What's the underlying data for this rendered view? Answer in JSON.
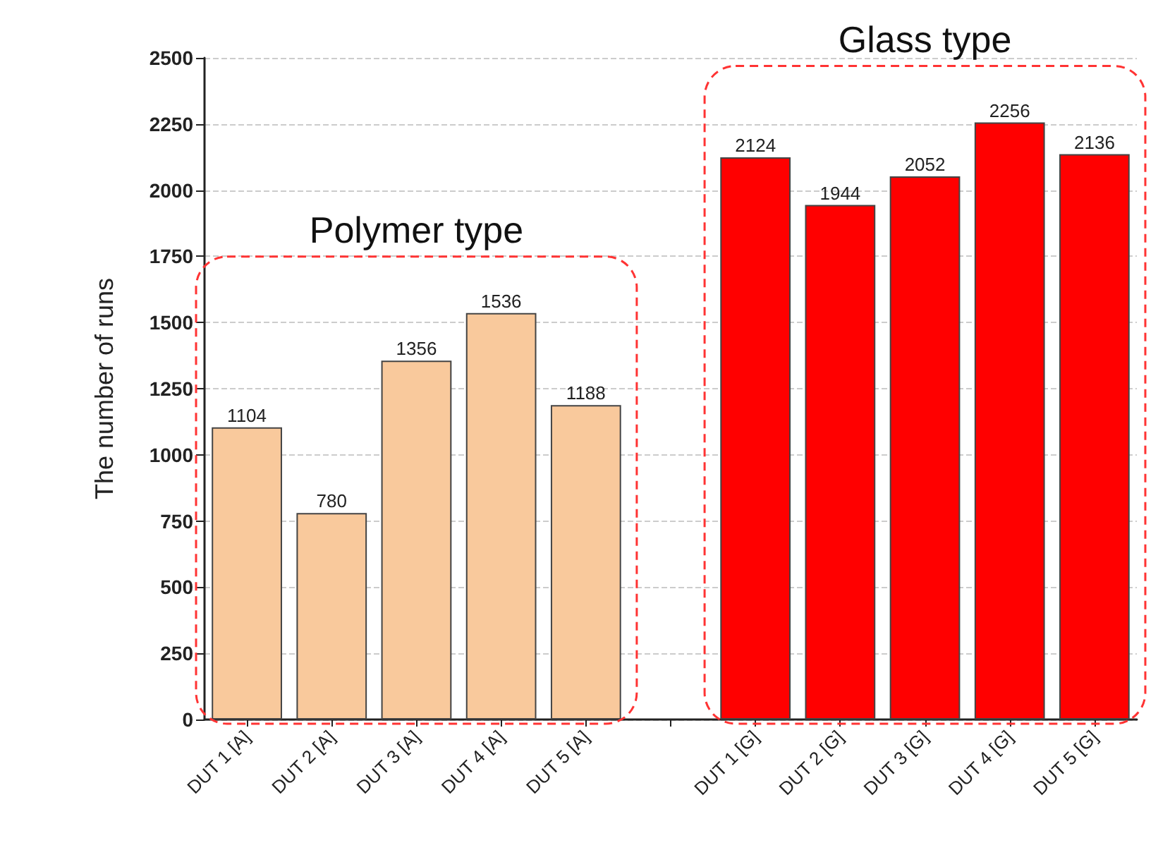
{
  "chart_data": {
    "type": "bar",
    "ylabel": "The number of runs",
    "categories": [
      "DUT 1 [A]",
      "DUT 2 [A]",
      "DUT 3 [A]",
      "DUT 4 [A]",
      "DUT 5 [A]",
      null,
      "DUT 1 [G]",
      "DUT 2 [G]",
      "DUT 3 [G]",
      "DUT 4 [G]",
      "DUT 5 [G]"
    ],
    "values": [
      1104,
      780,
      1356,
      1536,
      1188,
      null,
      2124,
      1944,
      2052,
      2256,
      2136
    ],
    "colors": [
      "#f9c99c",
      "#f9c99c",
      "#f9c99c",
      "#f9c99c",
      "#f9c99c",
      null,
      "#ff0000",
      "#ff0000",
      "#ff0000",
      "#ff0000",
      "#ff0000"
    ],
    "ylim": [
      0,
      2500
    ],
    "yticks": [
      0,
      250,
      500,
      750,
      1000,
      1250,
      1500,
      1750,
      2000,
      2250,
      2500
    ],
    "grid": "y",
    "data_labels": true,
    "annotations": [
      "Polymer type",
      "Glass type"
    ]
  }
}
